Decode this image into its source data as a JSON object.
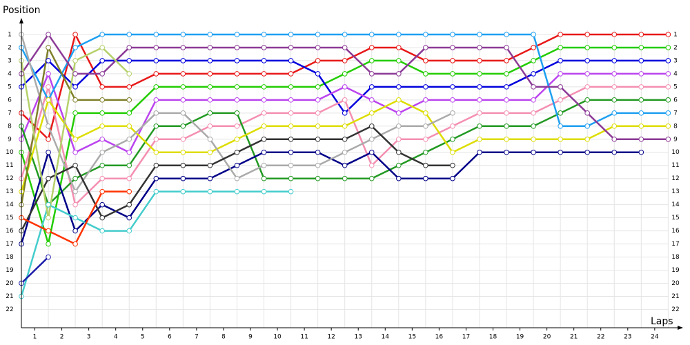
{
  "chart_data": {
    "type": "line",
    "y_label": "Position",
    "x_label": "Laps",
    "x": [
      0,
      1,
      2,
      3,
      4,
      5,
      6,
      7,
      8,
      9,
      10,
      11,
      12,
      13,
      14,
      15,
      16,
      17,
      18,
      19,
      20,
      21,
      22,
      23,
      24
    ],
    "xlim": [
      0,
      24.4
    ],
    "xticks": [
      {
        "value": 0.5,
        "label": "1"
      },
      {
        "value": 1.5,
        "label": "2"
      },
      {
        "value": 2.5,
        "label": "3"
      },
      {
        "value": 3.5,
        "label": "4"
      },
      {
        "value": 4.5,
        "label": "5"
      },
      {
        "value": 5.5,
        "label": "6"
      },
      {
        "value": 6.5,
        "label": "7"
      },
      {
        "value": 7.5,
        "label": "8"
      },
      {
        "value": 8.5,
        "label": "9"
      },
      {
        "value": 9.5,
        "label": "10"
      },
      {
        "value": 10.5,
        "label": "11"
      },
      {
        "value": 11.5,
        "label": "12"
      },
      {
        "value": 12.5,
        "label": "13"
      },
      {
        "value": 13.5,
        "label": "14"
      },
      {
        "value": 14.5,
        "label": "15"
      },
      {
        "value": 15.5,
        "label": "16"
      },
      {
        "value": 16.5,
        "label": "17"
      },
      {
        "value": 17.5,
        "label": "18"
      },
      {
        "value": 18.5,
        "label": "19"
      },
      {
        "value": 19.5,
        "label": "20"
      },
      {
        "value": 20.5,
        "label": "21"
      },
      {
        "value": 21.5,
        "label": "22"
      },
      {
        "value": 22.5,
        "label": "23"
      },
      {
        "value": 23.5,
        "label": "24"
      }
    ],
    "ylim": [
      23.4,
      0
    ],
    "yticks": [
      1,
      2,
      3,
      4,
      5,
      6,
      7,
      8,
      9,
      10,
      11,
      12,
      13,
      14,
      15,
      16,
      17,
      18,
      19,
      20,
      21,
      22
    ],
    "grid": true,
    "series": [
      {
        "color": "#e81818",
        "values": [
          7,
          9,
          1,
          5,
          5,
          4,
          4,
          4,
          4,
          4,
          4,
          3,
          3,
          2,
          2,
          3,
          3,
          3,
          3,
          2,
          1,
          1,
          1,
          1,
          1
        ]
      },
      {
        "color": "#22cc00",
        "values": [
          10,
          17,
          7,
          7,
          7,
          5,
          5,
          5,
          5,
          5,
          5,
          5,
          4,
          3,
          3,
          4,
          4,
          4,
          4,
          3,
          2,
          2,
          2,
          2,
          2
        ]
      },
      {
        "color": "#0000dd",
        "values": [
          5,
          3,
          5,
          3,
          3,
          3,
          3,
          3,
          3,
          3,
          3,
          4,
          7,
          5,
          5,
          5,
          5,
          5,
          5,
          4,
          3,
          3,
          3,
          3,
          3
        ]
      },
      {
        "color": "#bb44ee",
        "values": [
          9,
          4,
          10,
          9,
          10,
          6,
          6,
          6,
          6,
          6,
          6,
          6,
          5,
          6,
          7,
          6,
          6,
          6,
          6,
          6,
          4,
          4,
          4,
          4,
          4
        ]
      },
      {
        "color": "#f48fb1",
        "values": [
          12,
          5,
          14,
          12,
          12,
          9,
          9,
          8,
          8,
          7,
          7,
          7,
          6,
          11,
          9,
          9,
          8,
          7,
          7,
          7,
          6,
          5,
          5,
          5,
          5
        ]
      },
      {
        "color": "#229922",
        "values": [
          8,
          14,
          12,
          11,
          11,
          8,
          8,
          7,
          7,
          12,
          12,
          12,
          12,
          12,
          11,
          10,
          9,
          8,
          8,
          8,
          7,
          6,
          6,
          6,
          6
        ]
      },
      {
        "color": "#1e9ff0",
        "values": [
          2,
          6,
          2,
          1,
          1,
          1,
          1,
          1,
          1,
          1,
          1,
          1,
          1,
          1,
          1,
          1,
          1,
          1,
          1,
          1,
          8,
          8,
          7,
          7,
          7
        ]
      },
      {
        "color": "#dddd00",
        "values": [
          13,
          6,
          9,
          8,
          8,
          10,
          10,
          10,
          9,
          8,
          8,
          8,
          8,
          7,
          6,
          7,
          10,
          9,
          9,
          9,
          9,
          9,
          8,
          8,
          8
        ]
      },
      {
        "color": "#8b3a96",
        "values": [
          4,
          1,
          4,
          4,
          2,
          2,
          2,
          2,
          2,
          2,
          2,
          2,
          2,
          4,
          4,
          2,
          2,
          2,
          2,
          5,
          5,
          7,
          9,
          9,
          9
        ]
      },
      {
        "color": "#000088",
        "values": [
          17,
          10,
          16,
          14,
          15,
          12,
          12,
          12,
          11,
          10,
          10,
          10,
          11,
          10,
          12,
          12,
          12,
          10,
          10,
          10,
          10,
          10,
          10,
          10,
          null
        ]
      },
      {
        "color": "#aaaaaa",
        "values": [
          1,
          8,
          13,
          10,
          9,
          7,
          7,
          9,
          12,
          11,
          11,
          11,
          10,
          9,
          8,
          8,
          7,
          null,
          null,
          null,
          null,
          null,
          null,
          null,
          null
        ]
      },
      {
        "color": "#333333",
        "values": [
          16,
          12,
          11,
          15,
          14,
          11,
          11,
          11,
          10,
          9,
          9,
          9,
          9,
          8,
          10,
          11,
          11,
          null,
          null,
          null,
          null,
          null,
          null,
          null,
          null
        ]
      },
      {
        "color": "#44cccc",
        "values": [
          21,
          14,
          15,
          16,
          16,
          13,
          13,
          13,
          13,
          13,
          13,
          null,
          null,
          null,
          null,
          null,
          null,
          null,
          null,
          null,
          null,
          null,
          null,
          null,
          null
        ]
      },
      {
        "color": "#ff3300",
        "values": [
          15,
          16,
          17,
          13,
          13,
          null,
          null,
          null,
          null,
          null,
          null,
          null,
          null,
          null,
          null,
          null,
          null,
          null,
          null,
          null,
          null,
          null,
          null,
          null,
          null
        ]
      },
      {
        "color": "#7f7f2a",
        "values": [
          14,
          2,
          6,
          6,
          6,
          null,
          null,
          null,
          null,
          null,
          null,
          null,
          null,
          null,
          null,
          null,
          null,
          null,
          null,
          null,
          null,
          null,
          null,
          null,
          null
        ]
      },
      {
        "color": "#b5d16b",
        "values": [
          3,
          15,
          3,
          2,
          4,
          null,
          null,
          null,
          null,
          null,
          null,
          null,
          null,
          null,
          null,
          null,
          null,
          null,
          null,
          null,
          null,
          null,
          null,
          null,
          null
        ]
      },
      {
        "color": "#1a1aa8",
        "values": [
          20,
          18,
          null,
          null,
          null,
          null,
          null,
          null,
          null,
          null,
          null,
          null,
          null,
          null,
          null,
          null,
          null,
          null,
          null,
          null,
          null,
          null,
          null,
          null,
          null
        ]
      }
    ]
  }
}
